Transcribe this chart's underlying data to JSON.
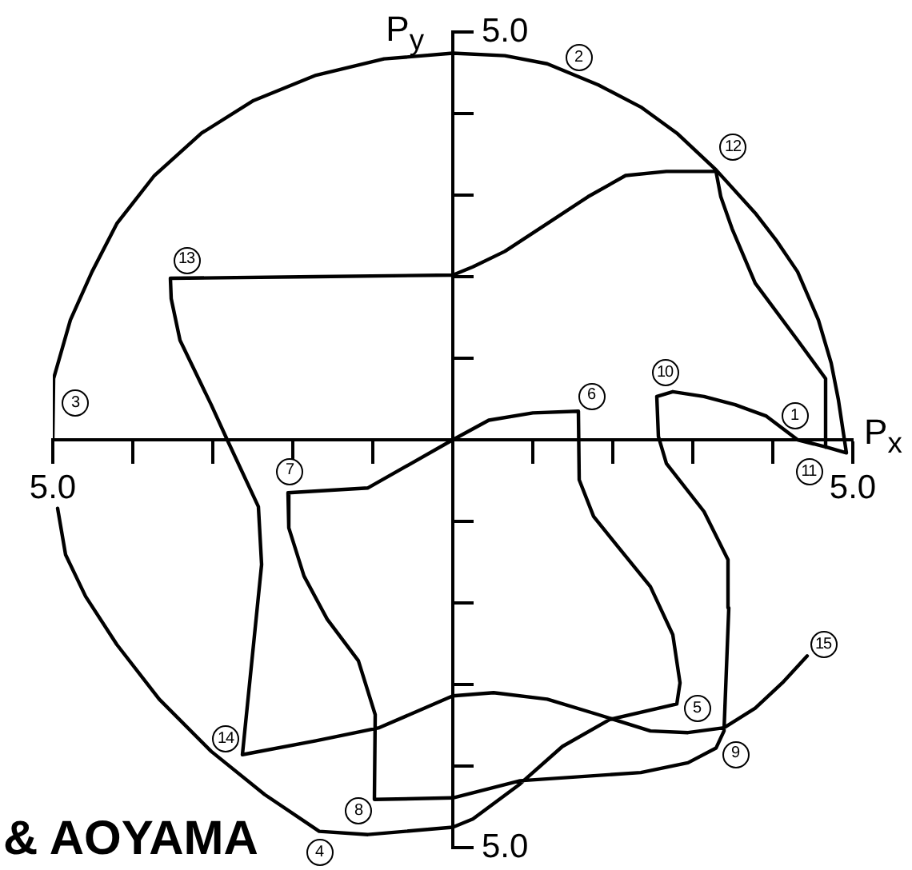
{
  "chart_data": {
    "type": "line",
    "xlabel": "P$_{x}$",
    "ylabel": "P$_{y}$",
    "color": "#000000",
    "marker": "none",
    "line_style": "solid",
    "x": [
      2.55,
      2.75,
      3.14,
      3.53,
      3.92,
      4.31,
      4.67,
      4.92,
      4.88,
      4.82,
      4.73,
      4.57,
      4.31,
      4.04,
      3.78,
      3.29,
      2.8,
      2.35,
      1.82,
      1.18,
      0.65,
      0,
      -0.86,
      -1.71,
      -2.49,
      -3.14,
      -3.73,
      -4.2,
      -4.51,
      -4.78,
      -4.99,
      -5,
      null,
      -4.94,
      -4.84,
      -4.59,
      -4.2,
      -3.67,
      -3.02,
      -2.35,
      -1.67,
      -1.06,
      0,
      0.25,
      0.84,
      1.37,
      1.96,
      2.8,
      2.84,
      2.75,
      2.47,
      2.08,
      1.76,
      1.58,
      1.57,
      1.0,
      0.45,
      0,
      -1.06,
      -2.06,
      -2.05,
      -1.86,
      -1.57,
      -1.18,
      -0.97,
      -0.98,
      0,
      0.84,
      2.35,
      2.94,
      3.29,
      3.39,
      3.45,
      3.44,
      3.14,
      2.67,
      2.57,
      2.55,
      null,
      4.67,
      4.66,
      4.31,
      3.78,
      3.49,
      3.35,
      3.29,
      2.67,
      2.16,
      1.69,
      1.18,
      0.65,
      0.25,
      0,
      -1.71,
      -3.53,
      -3.52,
      -3.41,
      -3.02,
      -2.82,
      -2.43,
      -2.39,
      -2.63,
      -1.71,
      -0.92,
      0,
      0.51,
      1.18,
      1.82,
      2.47,
      2.94,
      3.39,
      3.78,
      4.12,
      4.43
    ],
    "values": [
      0.53,
      0.59,
      0.53,
      0.43,
      0.29,
      0,
      -0.09,
      -0.16,
      0.1,
      0.49,
      0.94,
      1.47,
      2.06,
      2.45,
      2.78,
      3.31,
      3.76,
      4.08,
      4.35,
      4.61,
      4.71,
      4.74,
      4.67,
      4.47,
      4.16,
      3.76,
      3.24,
      2.65,
      2.06,
      1.47,
      0.75,
      0,
      null,
      -0.84,
      -1.41,
      -1.92,
      -2.51,
      -3.18,
      -3.82,
      -4.35,
      -4.8,
      -4.84,
      -4.75,
      -4.65,
      -4.22,
      -3.76,
      -3.43,
      -3.24,
      -2.98,
      -2.39,
      -1.8,
      -1.33,
      -0.94,
      -0.49,
      0.35,
      0.33,
      0.24,
      0,
      -0.59,
      -0.65,
      -1.08,
      -1.67,
      -2.2,
      -2.71,
      -3.37,
      -4.41,
      -4.39,
      -4.18,
      -4.08,
      -3.96,
      -3.78,
      -3.57,
      -2.06,
      -1.47,
      -0.88,
      -0.29,
      0.04,
      0.53,
      null,
      -0.09,
      0.75,
      1.22,
      1.92,
      2.59,
      2.98,
      3.29,
      3.29,
      3.24,
      2.98,
      2.65,
      2.31,
      2.12,
      2.02,
      2.0,
      1.98,
      1.73,
      1.22,
      0.43,
      0,
      -0.82,
      -1.53,
      -3.86,
      -3.69,
      -3.53,
      -3.14,
      -3.1,
      -3.18,
      -3.37,
      -3.57,
      -3.59,
      -3.53,
      -3.29,
      -2.98,
      -2.65
    ],
    "xlim": [
      -5,
      5
    ],
    "ylim": [
      -5,
      5
    ],
    "xticks": [
      {
        "value": -5,
        "label": "5.0"
      },
      {
        "value": -4,
        "label": null
      },
      {
        "value": -3,
        "label": null
      },
      {
        "value": -2,
        "label": null
      },
      {
        "value": -1,
        "label": null
      },
      {
        "value": 1,
        "label": null
      },
      {
        "value": 2,
        "label": null
      },
      {
        "value": 3,
        "label": null
      },
      {
        "value": 4,
        "label": null
      },
      {
        "value": 5,
        "label": "5.0"
      }
    ],
    "yticks": [
      {
        "value": -5,
        "label": "5.0"
      },
      {
        "value": -4,
        "label": null
      },
      {
        "value": -3,
        "label": null
      },
      {
        "value": -2,
        "label": null
      },
      {
        "value": -1,
        "label": null
      },
      {
        "value": 1,
        "label": null
      },
      {
        "value": 2,
        "label": null
      },
      {
        "value": 3,
        "label": null
      },
      {
        "value": 4,
        "label": null
      },
      {
        "value": 5,
        "label": "5.0"
      }
    ],
    "annotations": [
      {
        "text": "1",
        "x": 4.27,
        "y": 0.29
      },
      {
        "text": "2",
        "x": 1.57,
        "y": 4.68
      },
      {
        "text": "3",
        "x": -4.72,
        "y": 0.45
      },
      {
        "text": "4",
        "x": -1.67,
        "y": -5.06
      },
      {
        "text": "5",
        "x": 3.05,
        "y": -3.3
      },
      {
        "text": "6",
        "x": 1.73,
        "y": 0.53
      },
      {
        "text": "7",
        "x": -2.04,
        "y": -0.39
      },
      {
        "text": "8",
        "x": -1.18,
        "y": -4.55
      },
      {
        "text": "9",
        "x": 3.53,
        "y": -3.86
      },
      {
        "text": "10",
        "x": 2.65,
        "y": 0.82
      },
      {
        "text": "11",
        "x": 4.45,
        "y": -0.4
      },
      {
        "text": "12",
        "x": 3.5,
        "y": 3.58
      },
      {
        "text": "13",
        "x": -3.33,
        "y": 2.2
      },
      {
        "text": "14",
        "x": -2.84,
        "y": -3.67
      },
      {
        "text": "15",
        "x": 4.63,
        "y": -2.51
      },
      "& AOYAMA"
    ]
  }
}
